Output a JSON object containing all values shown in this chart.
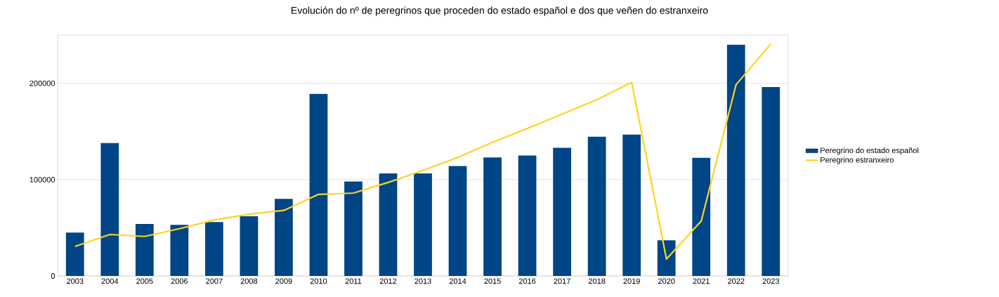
{
  "chart_data": {
    "type": "bar",
    "title": "Evolución do nº de peregrinos que proceden do estado español e dos que veñen do estranxeiro",
    "categories": [
      "2003",
      "2004",
      "2005",
      "2006",
      "2007",
      "2008",
      "2009",
      "2010",
      "2011",
      "2012",
      "2013",
      "2014",
      "2015",
      "2016",
      "2017",
      "2018",
      "2019",
      "2020",
      "2021",
      "2022",
      "2023"
    ],
    "series": [
      {
        "name": "Peregrino do estado español",
        "color": "#004586",
        "type": "bar",
        "values": [
          45000,
          138000,
          54000,
          53000,
          56000,
          62000,
          80000,
          189000,
          98000,
          106500,
          106500,
          114000,
          123000,
          125000,
          133000,
          144500,
          146700,
          37000,
          122600,
          240000,
          196000
        ]
      },
      {
        "name": "Peregrino estranxeiro",
        "color": "#ffd320",
        "type": "line",
        "values": [
          30600,
          43000,
          41000,
          49000,
          58000,
          64000,
          68000,
          84700,
          86000,
          97000,
          109500,
          123000,
          138700,
          153000,
          168000,
          183000,
          201000,
          17500,
          57000,
          198500,
          241000
        ]
      }
    ],
    "ylim": [
      0,
      250000
    ],
    "yticks": [
      0,
      100000,
      200000
    ],
    "grid": "y",
    "legend": "right"
  }
}
